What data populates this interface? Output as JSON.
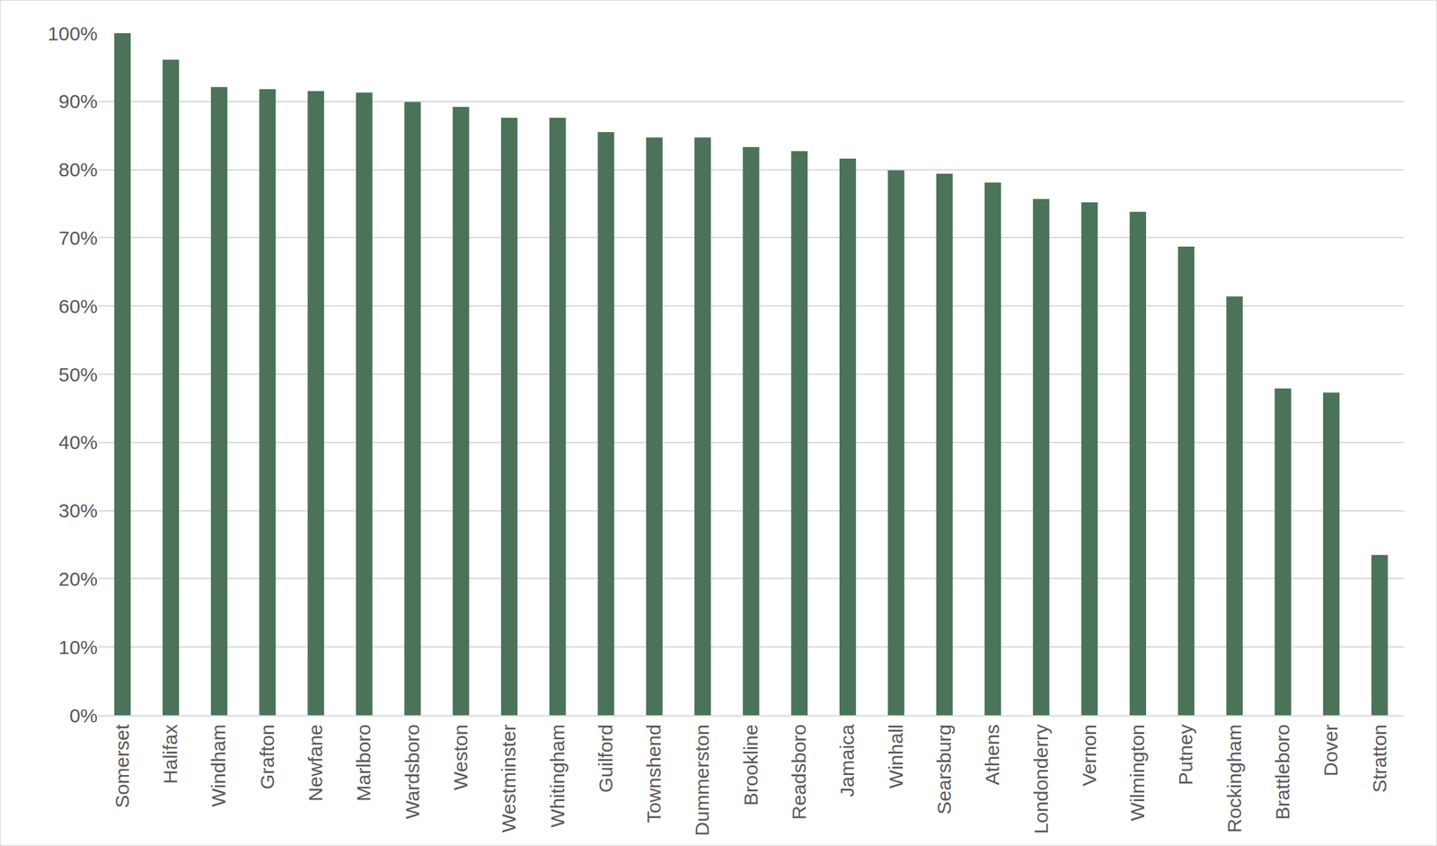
{
  "chart_data": {
    "type": "bar",
    "categories": [
      "Somerset",
      "Halifax",
      "Windham",
      "Grafton",
      "Newfane",
      "Marlboro",
      "Wardsboro",
      "Weston",
      "Westminster",
      "Whitingham",
      "Guilford",
      "Townshend",
      "Dummerston",
      "Brookline",
      "Readsboro",
      "Jamaica",
      "Winhall",
      "Searsburg",
      "Athens",
      "Londonderry",
      "Vernon",
      "Wilmington",
      "Putney",
      "Rockingham",
      "Brattleboro",
      "Dover",
      "Stratton"
    ],
    "values": [
      100,
      96.1,
      92.1,
      91.8,
      91.5,
      91.3,
      89.9,
      89.2,
      87.6,
      87.6,
      85.5,
      84.7,
      84.7,
      83.3,
      82.7,
      81.6,
      79.9,
      79.4,
      78.1,
      75.7,
      75.2,
      73.8,
      68.7,
      61.4,
      47.9,
      47.3,
      23.5
    ],
    "color": "#4a7359",
    "ylim": [
      0,
      100
    ],
    "yticks": [
      {
        "value": 0,
        "label": "0%"
      },
      {
        "value": 10,
        "label": "10%"
      },
      {
        "value": 20,
        "label": "20%"
      },
      {
        "value": 30,
        "label": "30%"
      },
      {
        "value": 40,
        "label": "40%"
      },
      {
        "value": 50,
        "label": "50%"
      },
      {
        "value": 60,
        "label": "60%"
      },
      {
        "value": 70,
        "label": "70%"
      },
      {
        "value": 80,
        "label": "80%"
      },
      {
        "value": 90,
        "label": "90%"
      },
      {
        "value": 100,
        "label": "100%"
      }
    ],
    "grid": true
  }
}
